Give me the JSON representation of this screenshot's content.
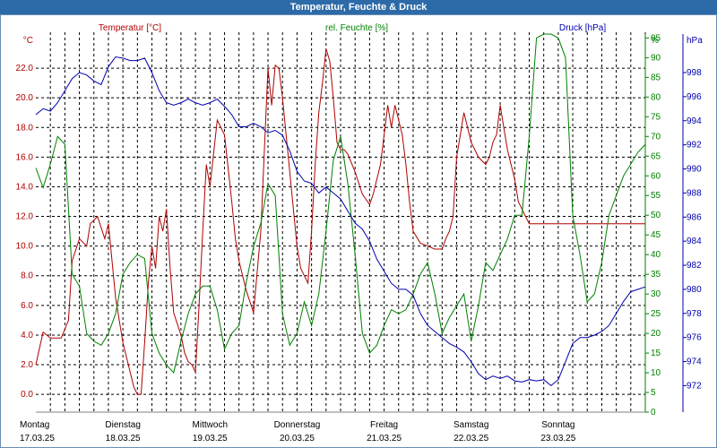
{
  "title": "Temperatur, Feuchte & Druck",
  "colors": {
    "temperature": "#b00000",
    "humidity": "#008000",
    "pressure": "#0000b0",
    "grid": "#000000",
    "title_bar": "#2d6aa8"
  },
  "chart_data": {
    "type": "line",
    "title": "Temperatur, Feuchte & Druck",
    "x_unit": "hours since Montag 17.03.25 00:00",
    "xlim": [
      0,
      168
    ],
    "grid": true,
    "days": [
      {
        "name": "Montag",
        "date": "17.03.25"
      },
      {
        "name": "Dienstag",
        "date": "18.03.25"
      },
      {
        "name": "Mittwoch",
        "date": "19.03.25"
      },
      {
        "name": "Donnerstag",
        "date": "20.03.25"
      },
      {
        "name": "Freitag",
        "date": "21.03.25"
      },
      {
        "name": "Samstag",
        "date": "22.03.25"
      },
      {
        "name": "Sonntag",
        "date": "23.03.25"
      }
    ],
    "axes": {
      "temperature": {
        "label": "Temperatur [°C]",
        "unit": "°C",
        "ylim": [
          -1.2,
          24.3
        ],
        "ticks": [
          "0.0",
          "2.0",
          "4.0",
          "6.0",
          "8.0",
          "10.0",
          "12.0",
          "14.0",
          "16.0",
          "18.0",
          "20.0",
          "22.0"
        ]
      },
      "humidity": {
        "label": "rel. Feuchte [%]",
        "unit": "%",
        "ylim": [
          0,
          96
        ],
        "ticks": [
          "0",
          "5",
          "10",
          "15",
          "20",
          "25",
          "30",
          "35",
          "40",
          "45",
          "50",
          "55",
          "60",
          "65",
          "70",
          "75",
          "80",
          "85",
          "90",
          "95"
        ]
      },
      "pressure": {
        "label": "Druck [hPa]",
        "unit": "hPa",
        "ylim": [
          969.8,
          1001.2
        ],
        "ticks": [
          "972",
          "974",
          "976",
          "978",
          "980",
          "982",
          "984",
          "986",
          "988",
          "990",
          "992",
          "994",
          "996",
          "998"
        ]
      }
    },
    "series": [
      {
        "name": "Temperatur [°C]",
        "axis": "temperature",
        "x": [
          0,
          2,
          4,
          7,
          9,
          10,
          12,
          14,
          15,
          17,
          19,
          20,
          22,
          24,
          26,
          27,
          28,
          29,
          30,
          31,
          32,
          33,
          34,
          35,
          36,
          37,
          38,
          40,
          41,
          42,
          43,
          44,
          45,
          46,
          47,
          48,
          50,
          52,
          54,
          55,
          56,
          57,
          58,
          60,
          62,
          63,
          64,
          65,
          66,
          67,
          68,
          70,
          72,
          73,
          74,
          75,
          76,
          77,
          78,
          79,
          80,
          81,
          82,
          83,
          84,
          85,
          86,
          88,
          90,
          92,
          93,
          95,
          96,
          97,
          98,
          99,
          100,
          101,
          102,
          103,
          104,
          106,
          108,
          110,
          111,
          112,
          113,
          114,
          115,
          116,
          117,
          118,
          119,
          120,
          122,
          124,
          125,
          126,
          127,
          128,
          129,
          130,
          131,
          132,
          133,
          134,
          135,
          136,
          138,
          140,
          142,
          144,
          146,
          148,
          150,
          151,
          152,
          153,
          154,
          155,
          156,
          157,
          158,
          159,
          160,
          161,
          162,
          163,
          164,
          165,
          166,
          168
        ],
        "values": [
          2.0,
          4.2,
          3.8,
          3.8,
          5.0,
          9.0,
          10.5,
          10.0,
          11.5,
          12.0,
          10.5,
          11.5,
          6.5,
          3.5,
          1.5,
          0.5,
          0.0,
          0.0,
          3.5,
          7.5,
          10.0,
          8.5,
          12.0,
          11.0,
          12.5,
          8.5,
          5.5,
          4.0,
          2.8,
          2.2,
          2.0,
          1.5,
          6.0,
          11.0,
          15.5,
          14.0,
          18.5,
          17.5,
          13.0,
          10.5,
          9.0,
          8.0,
          7.0,
          5.5,
          11.0,
          16.5,
          22.0,
          19.5,
          22.2,
          22.0,
          20.0,
          15.0,
          10.0,
          8.5,
          8.0,
          7.5,
          11.0,
          15.5,
          19.0,
          21.0,
          23.3,
          22.5,
          20.0,
          17.0,
          16.5,
          16.5,
          16.2,
          15.0,
          13.5,
          12.8,
          13.5,
          15.5,
          17.5,
          19.5,
          18.0,
          19.5,
          18.5,
          17.5,
          15.5,
          13.0,
          11.0,
          10.2,
          10.0,
          9.8,
          9.8,
          9.8,
          10.5,
          11.0,
          12.0,
          16.0,
          17.5,
          19.0,
          18.0,
          17.0,
          16.0,
          15.5,
          16.0,
          17.0,
          17.5,
          19.5,
          18.0,
          16.5,
          15.5,
          14.5,
          13.0,
          12.5,
          12.0,
          11.5,
          11.5,
          11.5,
          11.5,
          11.5,
          11.5,
          11.5,
          11.5,
          11.5,
          11.5,
          11.5,
          11.5,
          11.5,
          11.5,
          11.5,
          11.5,
          11.5,
          11.5,
          11.5,
          11.5,
          11.5,
          11.5,
          11.5,
          11.5,
          11.5
        ]
      },
      {
        "name": "rel. Feuchte [%]",
        "axis": "humidity",
        "x": [
          0,
          2,
          4,
          6,
          8,
          10,
          12,
          14,
          16,
          18,
          20,
          22,
          24,
          26,
          28,
          30,
          32,
          34,
          36,
          38,
          40,
          42,
          44,
          46,
          48,
          50,
          52,
          54,
          56,
          58,
          60,
          62,
          64,
          66,
          68,
          70,
          72,
          74,
          76,
          78,
          80,
          82,
          84,
          86,
          88,
          90,
          92,
          94,
          96,
          98,
          100,
          102,
          104,
          106,
          108,
          110,
          112,
          114,
          116,
          118,
          120,
          122,
          124,
          126,
          128,
          130,
          132,
          134,
          136,
          138,
          140,
          142,
          144,
          146,
          148,
          150,
          152,
          154,
          156,
          158,
          160,
          162,
          164,
          166,
          168
        ],
        "values": [
          62,
          57,
          63,
          70,
          68,
          35,
          32,
          20,
          18,
          17,
          20,
          25,
          35,
          38,
          40,
          39,
          20,
          15,
          12,
          10,
          18,
          25,
          30,
          32,
          32,
          26,
          16,
          20,
          22,
          33,
          42,
          48,
          58,
          55,
          25,
          17,
          20,
          28,
          22,
          30,
          46,
          64,
          70,
          58,
          40,
          20,
          15,
          17,
          22,
          26,
          25,
          26,
          30,
          35,
          38,
          30,
          20,
          24,
          27,
          30,
          18,
          27,
          38,
          36,
          40,
          44,
          50,
          50,
          70,
          95,
          96,
          96,
          95,
          90,
          50,
          40,
          28,
          30,
          38,
          50,
          55,
          60,
          63,
          66,
          68
        ]
      },
      {
        "name": "Druck [hPa]",
        "axis": "pressure",
        "x": [
          0,
          2,
          4,
          6,
          8,
          10,
          12,
          14,
          16,
          18,
          20,
          22,
          24,
          26,
          28,
          30,
          32,
          34,
          36,
          38,
          40,
          42,
          44,
          46,
          48,
          50,
          52,
          54,
          56,
          58,
          60,
          62,
          64,
          66,
          68,
          70,
          72,
          74,
          76,
          78,
          80,
          82,
          84,
          86,
          88,
          90,
          92,
          94,
          96,
          98,
          100,
          102,
          104,
          106,
          108,
          110,
          112,
          114,
          116,
          118,
          120,
          122,
          124,
          126,
          128,
          130,
          132,
          134,
          136,
          138,
          140,
          142,
          144,
          146,
          148,
          150,
          152,
          154,
          156,
          158,
          160,
          162,
          164,
          166,
          168
        ],
        "values": [
          994.5,
          995.0,
          994.8,
          995.5,
          996.5,
          997.5,
          998.0,
          997.8,
          997.3,
          997.0,
          998.5,
          999.3,
          999.2,
          999.0,
          999.0,
          999.2,
          998.0,
          996.5,
          995.5,
          995.3,
          995.5,
          995.8,
          995.5,
          995.3,
          995.5,
          995.8,
          995.2,
          994.5,
          993.5,
          993.5,
          993.8,
          993.5,
          993.0,
          993.2,
          992.8,
          991.5,
          989.8,
          989.0,
          988.8,
          988.0,
          988.5,
          988.0,
          987.5,
          986.5,
          985.5,
          985.0,
          984.0,
          982.5,
          981.5,
          980.5,
          980.0,
          980.0,
          979.5,
          978.0,
          977.0,
          976.5,
          976.0,
          975.5,
          975.2,
          974.8,
          974.0,
          973.0,
          972.5,
          972.8,
          972.6,
          972.8,
          972.4,
          972.3,
          972.5,
          972.4,
          972.5,
          972.0,
          972.5,
          974.0,
          975.5,
          976.0,
          976.0,
          976.2,
          976.5,
          977.0,
          978.0,
          979.0,
          979.8,
          980.0,
          980.2
        ]
      }
    ]
  }
}
